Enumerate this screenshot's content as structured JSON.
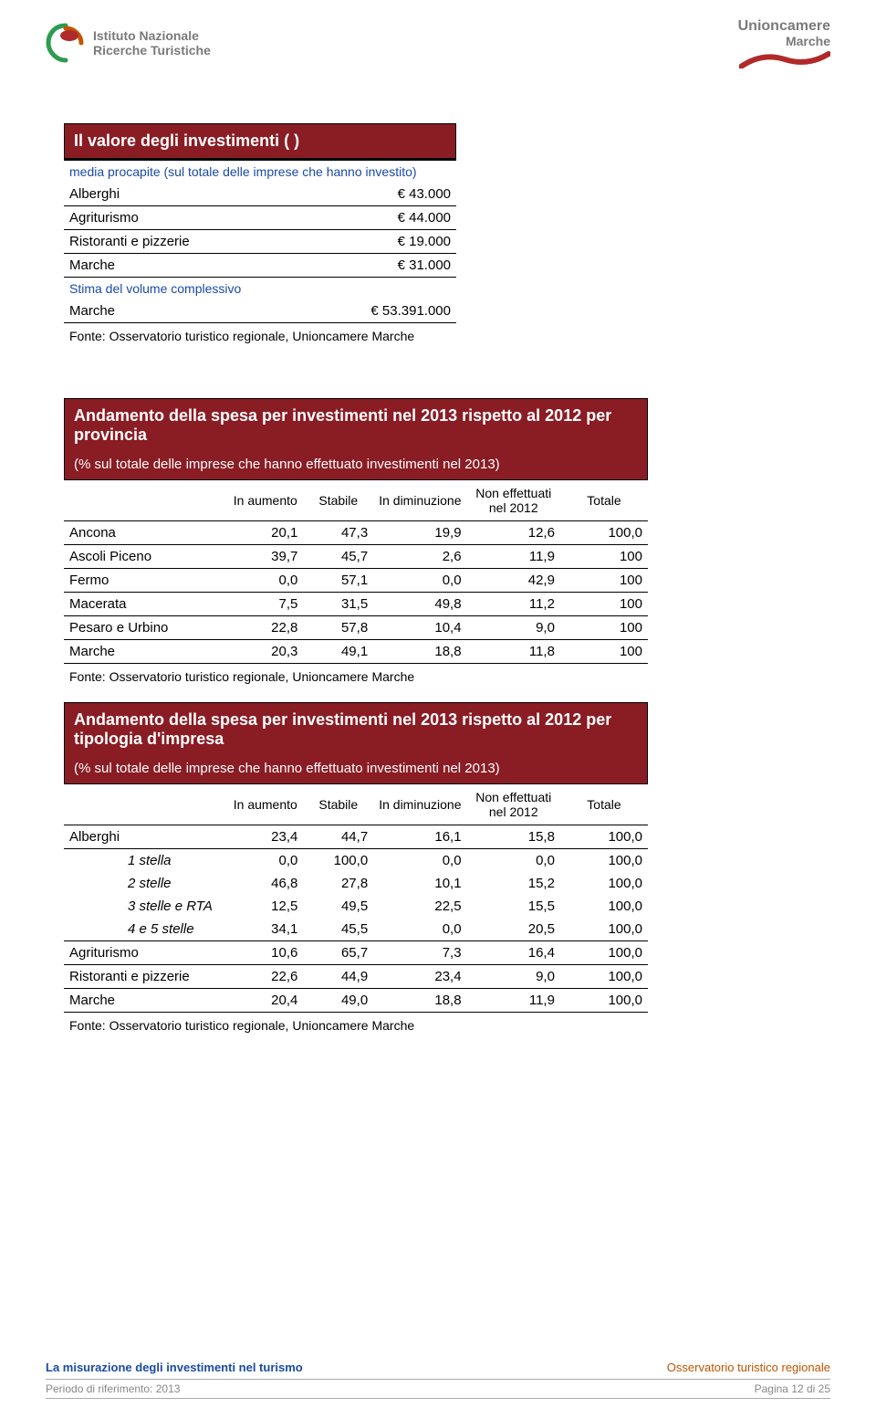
{
  "header": {
    "left_logo_line1": "Istituto Nazionale",
    "left_logo_line2": "Ricerche Turistiche",
    "right_logo_line1": "Unioncamere",
    "right_logo_line2": "Marche"
  },
  "colors": {
    "headerbg": "#8a1c24",
    "headerfg": "#ffffff",
    "subheader": "#1a4aa8",
    "footer_left": "#1a4aa8",
    "footer_right": "#c05500"
  },
  "table1": {
    "title": "Il valore degli investimenti ( )",
    "subtitle": "media procapite (sul totale delle imprese che hanno investito)",
    "rows": [
      {
        "label": "Alberghi",
        "value": "€ 43.000"
      },
      {
        "label": "Agriturismo",
        "value": "€ 44.000"
      },
      {
        "label": "Ristoranti e pizzerie",
        "value": "€ 19.000"
      },
      {
        "label": "Marche",
        "value": "€ 31.000"
      }
    ],
    "sub2": "Stima del volume complessivo",
    "totalrow": {
      "label": "Marche",
      "value": "€ 53.391.000"
    },
    "fonte": "Fonte: Osservatorio turistico regionale, Unioncamere Marche"
  },
  "table2": {
    "title": "Andamento della spesa per investimenti nel 2013 rispetto al 2012 per provincia",
    "sub": "(% sul totale delle imprese che hanno effettuato investimenti nel 2013)",
    "cols": [
      "",
      "In aumento",
      "Stabile",
      "In diminuzione",
      "Non effettuati nel 2012",
      "Totale"
    ],
    "rows": [
      {
        "c": [
          "Ancona",
          "20,1",
          "47,3",
          "19,9",
          "12,6",
          "100,0"
        ]
      },
      {
        "c": [
          "Ascoli Piceno",
          "39,7",
          "45,7",
          "2,6",
          "11,9",
          "100"
        ]
      },
      {
        "c": [
          "Fermo",
          "0,0",
          "57,1",
          "0,0",
          "42,9",
          "100"
        ]
      },
      {
        "c": [
          "Macerata",
          "7,5",
          "31,5",
          "49,8",
          "11,2",
          "100"
        ]
      },
      {
        "c": [
          "Pesaro e Urbino",
          "22,8",
          "57,8",
          "10,4",
          "9,0",
          "100"
        ]
      },
      {
        "c": [
          "Marche",
          "20,3",
          "49,1",
          "18,8",
          "11,8",
          "100"
        ]
      }
    ],
    "fonte": "Fonte: Osservatorio turistico regionale, Unioncamere Marche"
  },
  "table3": {
    "title": "Andamento della spesa per investimenti nel 2013 rispetto al 2012 per tipologia d'impresa",
    "sub": "(% sul totale delle imprese che hanno effettuato investimenti nel 2013)",
    "cols": [
      "",
      "In aumento",
      "Stabile",
      "In diminuzione",
      "Non effettuati nel 2012",
      "Totale"
    ],
    "rows": [
      {
        "c": [
          "Alberghi",
          "23,4",
          "44,7",
          "16,1",
          "15,8",
          "100,0"
        ],
        "indent": false,
        "sep": true
      },
      {
        "c": [
          "1 stella",
          "0,0",
          "100,0",
          "0,0",
          "0,0",
          "100,0"
        ],
        "indent": true
      },
      {
        "c": [
          "2 stelle",
          "46,8",
          "27,8",
          "10,1",
          "15,2",
          "100,0"
        ],
        "indent": true
      },
      {
        "c": [
          "3 stelle e RTA",
          "12,5",
          "49,5",
          "22,5",
          "15,5",
          "100,0"
        ],
        "indent": true
      },
      {
        "c": [
          "4 e 5 stelle",
          "34,1",
          "45,5",
          "0,0",
          "20,5",
          "100,0"
        ],
        "indent": true
      },
      {
        "c": [
          "Agriturismo",
          "10,6",
          "65,7",
          "7,3",
          "16,4",
          "100,0"
        ],
        "sep": true,
        "septop": true
      },
      {
        "c": [
          "Ristoranti e pizzerie",
          "22,6",
          "44,9",
          "23,4",
          "9,0",
          "100,0"
        ],
        "sep": true
      },
      {
        "c": [
          "Marche",
          "20,4",
          "49,0",
          "18,8",
          "11,9",
          "100,0"
        ],
        "sep": true
      }
    ],
    "fonte": "Fonte: Osservatorio turistico regionale, Unioncamere Marche"
  },
  "footer": {
    "left_title": "La misurazione degli investimenti nel turismo",
    "right_title": "Osservatorio turistico regionale",
    "period": "Periodo di riferimento: 2013",
    "page": "Pagina 12 di 25"
  }
}
